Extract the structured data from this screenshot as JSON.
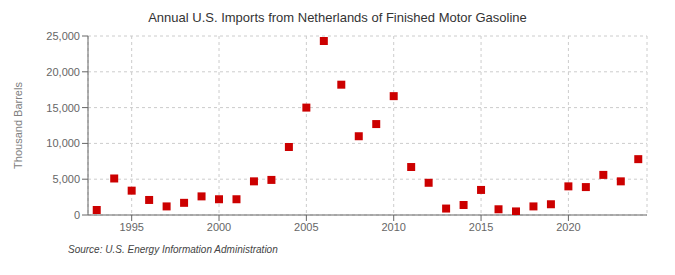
{
  "chart_data": {
    "type": "scatter",
    "title": "Annual U.S. Imports from Netherlands of Finished Motor Gasoline",
    "ylabel": "Thousand Barrels",
    "annotations": [
      "Source: U.S. Energy Information Administration"
    ],
    "x": [
      1993,
      1994,
      1995,
      1996,
      1997,
      1998,
      1999,
      2000,
      2001,
      2002,
      2003,
      2004,
      2005,
      2006,
      2007,
      2008,
      2009,
      2010,
      2011,
      2012,
      2013,
      2014,
      2015,
      2016,
      2017,
      2018,
      2019,
      2020,
      2021,
      2022,
      2023,
      2024
    ],
    "values": [
      700,
      5100,
      3400,
      2100,
      1200,
      1700,
      2600,
      2200,
      2200,
      4700,
      4900,
      9500,
      15000,
      24300,
      18200,
      11000,
      12700,
      16600,
      6700,
      4500,
      900,
      1400,
      3500,
      800,
      500,
      1200,
      1500,
      4000,
      3900,
      5600,
      4700,
      7800
    ],
    "color": "#cc0000",
    "marker": "square",
    "xlim": [
      1992.5,
      2024.5
    ],
    "ylim": [
      0,
      25000
    ],
    "xticks": [
      1995,
      2000,
      2005,
      2010,
      2015,
      2020
    ],
    "yticks": [
      0,
      {
        "value": 5000,
        "label": "5,000"
      },
      {
        "value": 10000,
        "label": "10,000"
      },
      {
        "value": 15000,
        "label": "15,000"
      },
      {
        "value": 20000,
        "label": "20,000"
      },
      {
        "value": 25000,
        "label": "25,000"
      }
    ],
    "grid": true
  }
}
